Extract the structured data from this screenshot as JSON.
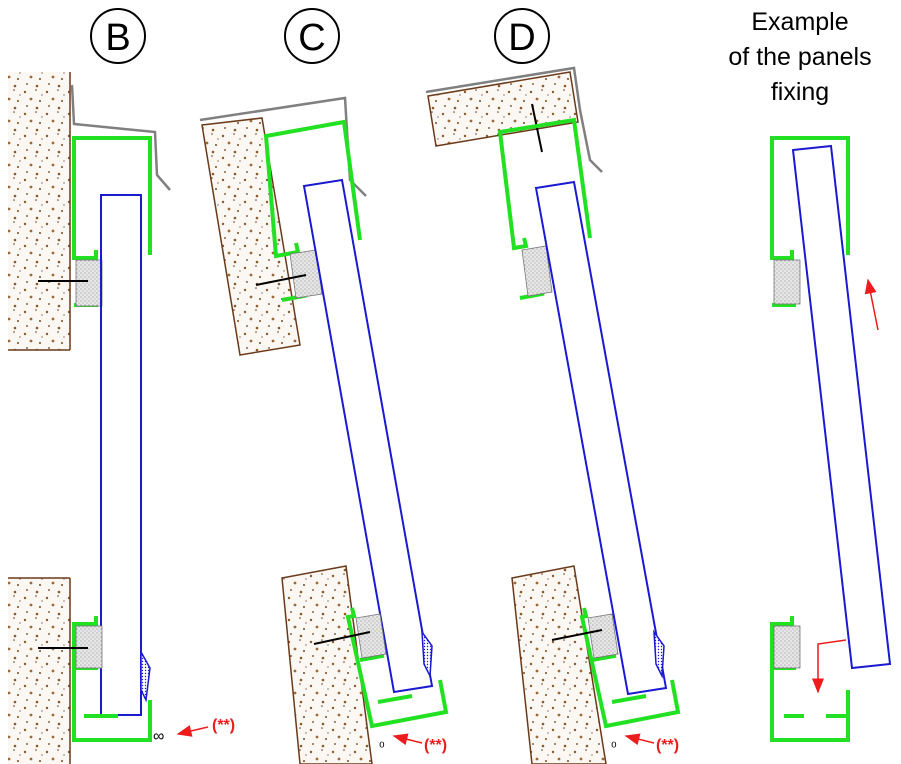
{
  "sections": [
    {
      "id": "B",
      "label": "B",
      "note": "(**)"
    },
    {
      "id": "C",
      "label": "C",
      "note": "(**)"
    },
    {
      "id": "D",
      "label": "D",
      "note": "(**)"
    }
  ],
  "example": {
    "title_line1": "Example",
    "title_line2": "of the panels",
    "title_line3": "fixing"
  },
  "colors": {
    "profile": "#22e022",
    "panel": "#1a1ad0",
    "wall_edge": "#6b3a1a",
    "flashing": "#808080",
    "note": "#ee1c1c",
    "arrow": "#ee1c1c"
  }
}
